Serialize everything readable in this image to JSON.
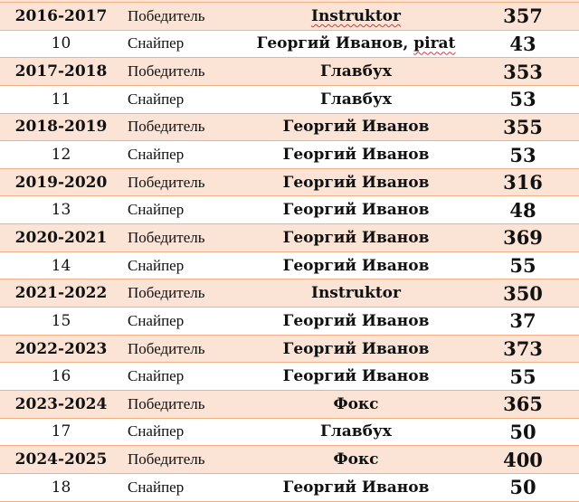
{
  "rows": [
    {
      "season": "2016-2017",
      "type": "Победитель",
      "name": "Instruktor",
      "score": "357",
      "spell": true
    },
    {
      "season": "10",
      "type": "Снайпер",
      "name": "Георгий Иванов, ",
      "name2": "pirat",
      "score": "43"
    },
    {
      "season": "2017-2018",
      "type": "Победитель",
      "name": "Главбух",
      "score": "353"
    },
    {
      "season": "11",
      "type": "Снайпер",
      "name": "Главбух",
      "score": "53"
    },
    {
      "season": "2018-2019",
      "type": "Победитель",
      "name": "Георгий Иванов",
      "score": "355"
    },
    {
      "season": "12",
      "type": "Снайпер",
      "name": "Георгий Иванов",
      "score": "53"
    },
    {
      "season": "2019-2020",
      "type": "Победитель",
      "name": "Георгий Иванов",
      "score": "316"
    },
    {
      "season": "13",
      "type": "Снайпер",
      "name": "Георгий Иванов",
      "score": "48"
    },
    {
      "season": "2020-2021",
      "type": "Победитель",
      "name": "Георгий Иванов",
      "score": "369"
    },
    {
      "season": "14",
      "type": "Снайпер",
      "name": "Георгий Иванов",
      "score": "55"
    },
    {
      "season": "2021-2022",
      "type": "Победитель",
      "name": "Instruktor",
      "score": "350"
    },
    {
      "season": "15",
      "type": "Снайпер",
      "name": "Георгий Иванов",
      "score": "37"
    },
    {
      "season": "2022-2023",
      "type": "Победитель",
      "name": "Георгий Иванов",
      "score": "373"
    },
    {
      "season": "16",
      "type": "Снайпер",
      "name": "Георгий Иванов",
      "score": "55"
    },
    {
      "season": "2023-2024",
      "type": "Победитель",
      "name": "Фокс",
      "score": "365"
    },
    {
      "season": "17",
      "type": "Снайпер",
      "name": "Главбух",
      "score": "50"
    },
    {
      "season": "2024-2025",
      "type": "Победитель",
      "name": "Фокс",
      "score": "400"
    },
    {
      "season": "18",
      "type": "Снайпер",
      "name": "Георгий Иванов",
      "score": "50"
    }
  ],
  "colors": {
    "winner_row": "#fbe4d5",
    "border": "#f4b083"
  }
}
